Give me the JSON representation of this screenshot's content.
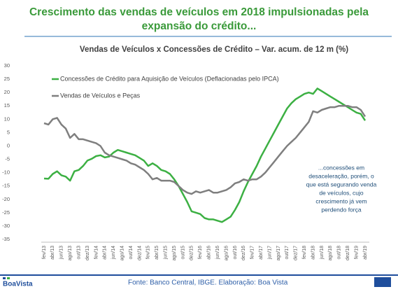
{
  "header": {
    "title": "Crescimento das vendas de veículos em 2018 impulsionadas pela expansão do crédito..."
  },
  "chart_data": {
    "type": "line",
    "title": "Vendas de Veículos x Concessões de Crédito – Var. acum. de 12 m (%)",
    "categories": [
      "fev/13",
      null,
      "abr/13",
      null,
      "jun/13",
      null,
      "ago/13",
      null,
      "out/13",
      null,
      "dez/13",
      null,
      "fev/14",
      null,
      "abr/14",
      null,
      "jun/14",
      null,
      "ago/14",
      null,
      "out/14",
      null,
      "dez/14",
      null,
      "fev/15",
      null,
      "abr/15",
      null,
      "jun/15",
      null,
      "ago/15",
      null,
      "out/15",
      null,
      "dez/15",
      null,
      "fev/16",
      null,
      "abr/16",
      null,
      "jun/16",
      null,
      "ago/16",
      null,
      "out/16",
      null,
      "dez/16",
      null,
      "fev/17",
      null,
      "abr/17",
      null,
      "jun/17",
      null,
      "ago/17",
      null,
      "out/17",
      null,
      "dez/17",
      null,
      "fev/18",
      null,
      "abr/18",
      null,
      "jun/18",
      null,
      "ago/18",
      null,
      "out/18",
      null,
      "dez/18",
      null,
      "fev/19",
      null,
      "abr/19"
    ],
    "series": [
      {
        "name": "Concessões de Crédito para Aquisição de Veículos (Deflacionadas pelo IPCA)",
        "color": "#3cb043",
        "values": [
          -12.2,
          -12.3,
          -10.5,
          -9.5,
          -11,
          -11.5,
          -13,
          -9.5,
          -9,
          -7.5,
          -5.5,
          -4.8,
          -3.8,
          -3.5,
          -4.3,
          -4,
          -2.5,
          -1.5,
          -2,
          -2.5,
          -3,
          -3.5,
          -4.5,
          -5.5,
          -7.5,
          -6.5,
          -7.5,
          -9,
          -9.5,
          -10.5,
          -12.5,
          -15,
          -18,
          -21,
          -24.5,
          -25,
          -25.5,
          -27,
          -27.5,
          -27.5,
          -28,
          -28.5,
          -27.5,
          -26.5,
          -24,
          -21,
          -17,
          -13.5,
          -10.5,
          -7.5,
          -4,
          -1,
          2,
          5,
          8,
          11,
          14,
          16,
          17.5,
          18.5,
          19.5,
          20,
          19.5,
          21.5,
          20.5,
          19.5,
          18.5,
          17.5,
          16.5,
          15.5,
          14.5,
          13.5,
          12.5,
          12,
          9.5
        ]
      },
      {
        "name": "Vendas de Veículos e Peças",
        "color": "#7f7f7f",
        "values": [
          8.5,
          8,
          10,
          10.5,
          8,
          6.5,
          3,
          4.5,
          2.5,
          2.5,
          2,
          1.5,
          1,
          0,
          -2.5,
          -3.5,
          -4,
          -4.5,
          -5,
          -5.5,
          -6.5,
          -7,
          -8,
          -9,
          -10.5,
          -12.5,
          -12,
          -13,
          -13,
          -13,
          -13.5,
          -15,
          -16.5,
          -17.5,
          -18,
          -17,
          -17.5,
          -17,
          -16.5,
          -17.5,
          -17.5,
          -17,
          -16.5,
          -15.5,
          -14,
          -13.5,
          -12.5,
          -13,
          -12.5,
          -12.5,
          -11.5,
          -10,
          -8,
          -6,
          -4,
          -2,
          0,
          1.5,
          3,
          5,
          7,
          9,
          13,
          12.5,
          13.5,
          14,
          14.5,
          14.5,
          15,
          15,
          15,
          14.5,
          14.5,
          13.5,
          11
        ]
      }
    ],
    "ylim": [
      -35,
      30
    ],
    "yticks": [
      30,
      25,
      20,
      15,
      10,
      5,
      0,
      -5,
      -10,
      -15,
      -20,
      -25,
      -30,
      -35
    ],
    "annotation": [
      "...concessões em",
      "desaceleração, porém, o",
      "que está segurando venda",
      "de veículos, cujo",
      "crescimento já vem",
      "perdendo força"
    ]
  },
  "footer": {
    "source": "Fonte: Banco Central, IBGE. Elaboração: Boa Vista",
    "logo": "BoaVista"
  }
}
